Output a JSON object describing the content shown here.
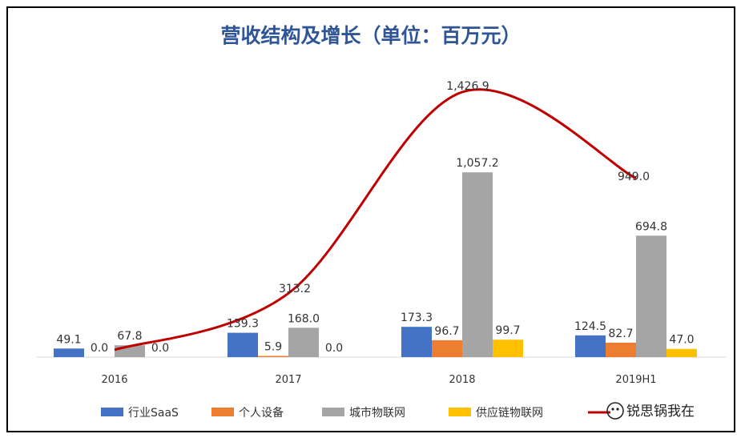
{
  "chart_data": {
    "type": "bar",
    "title": "营收结构及增长（单位：百万元）",
    "categories": [
      "2016",
      "2017",
      "2018",
      "2019H1"
    ],
    "series": [
      {
        "name": "行业SaaS",
        "type": "bar",
        "color": "#4472c4",
        "values": [
          49.1,
          139.3,
          173.3,
          124.5
        ]
      },
      {
        "name": "个人设备",
        "type": "bar",
        "color": "#ed7d31",
        "values": [
          0.0,
          5.9,
          96.7,
          82.7
        ]
      },
      {
        "name": "城市物联网",
        "type": "bar",
        "color": "#a5a5a5",
        "values": [
          67.8,
          168.0,
          1057.2,
          694.8
        ]
      },
      {
        "name": "供应链物联网",
        "type": "bar",
        "color": "#ffc000",
        "values": [
          0.0,
          0.0,
          99.7,
          47.0
        ]
      },
      {
        "name": "",
        "type": "line",
        "color": "#c00000",
        "values": [
          null,
          313.2,
          1426.9,
          949.0
        ]
      }
    ],
    "value_labels": {
      "bars": [
        [
          "49.1",
          "139.3",
          "173.3",
          "124.5"
        ],
        [
          "0.0",
          "5.9",
          "96.7",
          "82.7"
        ],
        [
          "67.8",
          "168.0",
          "1,057.2",
          "694.8"
        ],
        [
          "0.0",
          "0.0",
          "99.7",
          "47.0"
        ]
      ],
      "line": [
        "",
        "313.2",
        "1,426.9",
        "949.0"
      ]
    },
    "legend_position": "bottom",
    "grid": false
  },
  "watermark": "锐思锅我在",
  "colors": {
    "title": "#2f5597",
    "axis": "#d9d9d9",
    "text": "#333333"
  }
}
